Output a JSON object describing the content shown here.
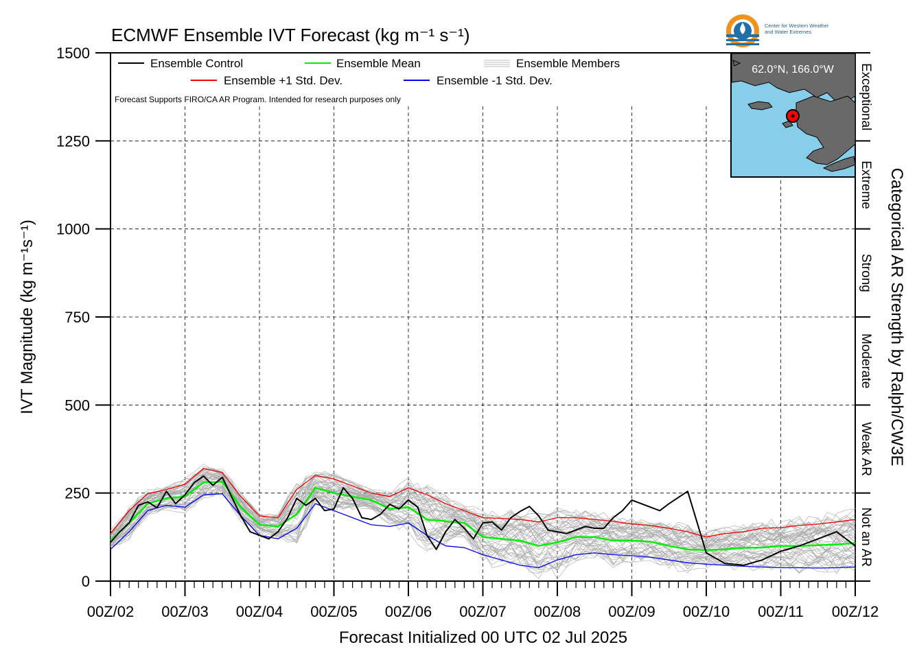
{
  "chart_data": {
    "type": "line",
    "title": "ECMWF Ensemble IVT Forecast (kg m⁻¹ s⁻¹)",
    "ylabel": "IVT Magnitude (kg m⁻¹s⁻¹)",
    "xlabel": "Forecast Initialized 00 UTC 02 Jul 2025",
    "right_label": "Categorical AR Strength by Ralph/CW3E",
    "ylim": [
      0,
      1500
    ],
    "yticks": [
      0,
      250,
      500,
      750,
      1000,
      1250,
      1500
    ],
    "xlim": [
      0,
      240
    ],
    "xtick_labels": [
      "00Z/02",
      "00Z/03",
      "00Z/04",
      "00Z/05",
      "00Z/06",
      "00Z/07",
      "00Z/08",
      "00Z/09",
      "00Z/10",
      "00Z/11",
      "00Z/12"
    ],
    "grid": true,
    "legend_placement": "top-left",
    "note": "Forecast Supports FIRO/CA AR Program. Intended for research purposes only",
    "location": "62.0°N, 166.0°W",
    "categories": [
      {
        "label": "Not an AR",
        "range": [
          0,
          250
        ]
      },
      {
        "label": "Weak AR",
        "range": [
          250,
          500
        ]
      },
      {
        "label": "Moderate",
        "range": [
          500,
          750
        ]
      },
      {
        "label": "Strong",
        "range": [
          750,
          1000
        ]
      },
      {
        "label": "Extreme",
        "range": [
          1000,
          1250
        ]
      },
      {
        "label": "Exceptional",
        "range": [
          1250,
          1500
        ]
      }
    ],
    "series": [
      {
        "name": "Ensemble Control",
        "color": "#000000",
        "x": [
          0,
          3,
          6,
          9,
          12,
          15,
          18,
          21,
          24,
          27,
          30,
          33,
          36,
          39,
          42,
          45,
          48,
          51,
          54,
          57,
          60,
          63,
          66,
          69,
          72,
          75,
          78,
          81,
          84,
          87,
          90,
          93,
          96,
          99,
          102,
          105,
          108,
          111,
          114,
          117,
          120,
          123,
          126,
          129,
          132,
          135,
          138,
          141,
          144,
          147,
          150,
          153,
          156,
          159,
          162,
          165,
          168,
          171,
          174,
          177,
          180,
          186,
          192,
          198,
          204,
          210,
          216,
          222,
          228,
          234,
          240
        ],
        "values": [
          110,
          140,
          165,
          215,
          225,
          208,
          255,
          220,
          245,
          280,
          298,
          272,
          295,
          240,
          185,
          140,
          130,
          120,
          140,
          178,
          235,
          215,
          235,
          200,
          205,
          265,
          235,
          180,
          175,
          190,
          218,
          205,
          230,
          210,
          130,
          90,
          140,
          175,
          150,
          120,
          165,
          168,
          145,
          180,
          198,
          212,
          185,
          145,
          140,
          135,
          145,
          155,
          150,
          150,
          180,
          200,
          230,
          220,
          210,
          200,
          220,
          255,
          80,
          50,
          45,
          60,
          85,
          100,
          120,
          140,
          100
        ]
      },
      {
        "name": "Ensemble Mean",
        "color": "#00ee00",
        "x": [
          0,
          6,
          12,
          18,
          24,
          30,
          36,
          42,
          48,
          54,
          60,
          66,
          72,
          78,
          84,
          90,
          96,
          102,
          108,
          114,
          120,
          126,
          132,
          138,
          144,
          150,
          156,
          162,
          168,
          174,
          180,
          186,
          192,
          198,
          204,
          210,
          216,
          222,
          228,
          234,
          240
        ],
        "values": [
          115,
          165,
          220,
          235,
          240,
          280,
          282,
          210,
          160,
          155,
          190,
          265,
          250,
          240,
          230,
          205,
          210,
          175,
          170,
          165,
          125,
          120,
          115,
          100,
          110,
          125,
          125,
          115,
          115,
          112,
          100,
          90,
          88,
          90,
          95,
          95,
          100,
          100,
          102,
          104,
          108
        ]
      },
      {
        "name": "Ensemble +1 Std. Dev.",
        "color": "#ee0000",
        "x": [
          0,
          6,
          12,
          18,
          24,
          30,
          36,
          42,
          48,
          54,
          60,
          66,
          72,
          78,
          84,
          90,
          96,
          102,
          108,
          114,
          120,
          126,
          132,
          138,
          144,
          150,
          156,
          162,
          168,
          174,
          180,
          186,
          192,
          198,
          204,
          210,
          216,
          222,
          228,
          234,
          240
        ],
        "values": [
          135,
          200,
          248,
          260,
          275,
          320,
          308,
          240,
          185,
          180,
          260,
          300,
          290,
          270,
          250,
          240,
          265,
          245,
          220,
          200,
          180,
          178,
          175,
          168,
          180,
          180,
          175,
          170,
          162,
          158,
          150,
          140,
          125,
          135,
          140,
          150,
          152,
          158,
          162,
          168,
          175
        ]
      },
      {
        "name": "Ensemble -1 Std. Dev.",
        "color": "#0000ee",
        "x": [
          0,
          6,
          12,
          18,
          24,
          30,
          36,
          42,
          48,
          54,
          60,
          66,
          72,
          78,
          84,
          90,
          96,
          102,
          108,
          114,
          120,
          126,
          132,
          138,
          144,
          150,
          156,
          162,
          168,
          174,
          180,
          186,
          192,
          198,
          204,
          210,
          216,
          222,
          228,
          234,
          240
        ],
        "values": [
          90,
          140,
          200,
          215,
          210,
          245,
          248,
          185,
          130,
          120,
          150,
          220,
          200,
          180,
          160,
          155,
          165,
          130,
          100,
          95,
          75,
          60,
          45,
          38,
          60,
          75,
          80,
          75,
          72,
          68,
          60,
          52,
          48,
          45,
          42,
          40,
          38,
          38,
          37,
          38,
          40
        ]
      }
    ],
    "members_label": "Ensemble Members",
    "members_color": "#aaaaaa"
  },
  "legend": {
    "control": "Ensemble Control",
    "mean": "Ensemble Mean",
    "members": "Ensemble Members",
    "plus_sd": "Ensemble +1 Std. Dev.",
    "minus_sd": "Ensemble -1 Std. Dev."
  },
  "logo": {
    "line1": "Center for Western Weather",
    "line2": "and Water Extremes"
  },
  "colors": {
    "map_water": "#87ceeb",
    "map_land": "#696969",
    "marker": "#ff0000",
    "logo_orange": "#f0931e",
    "logo_blue": "#1f6fa8"
  }
}
